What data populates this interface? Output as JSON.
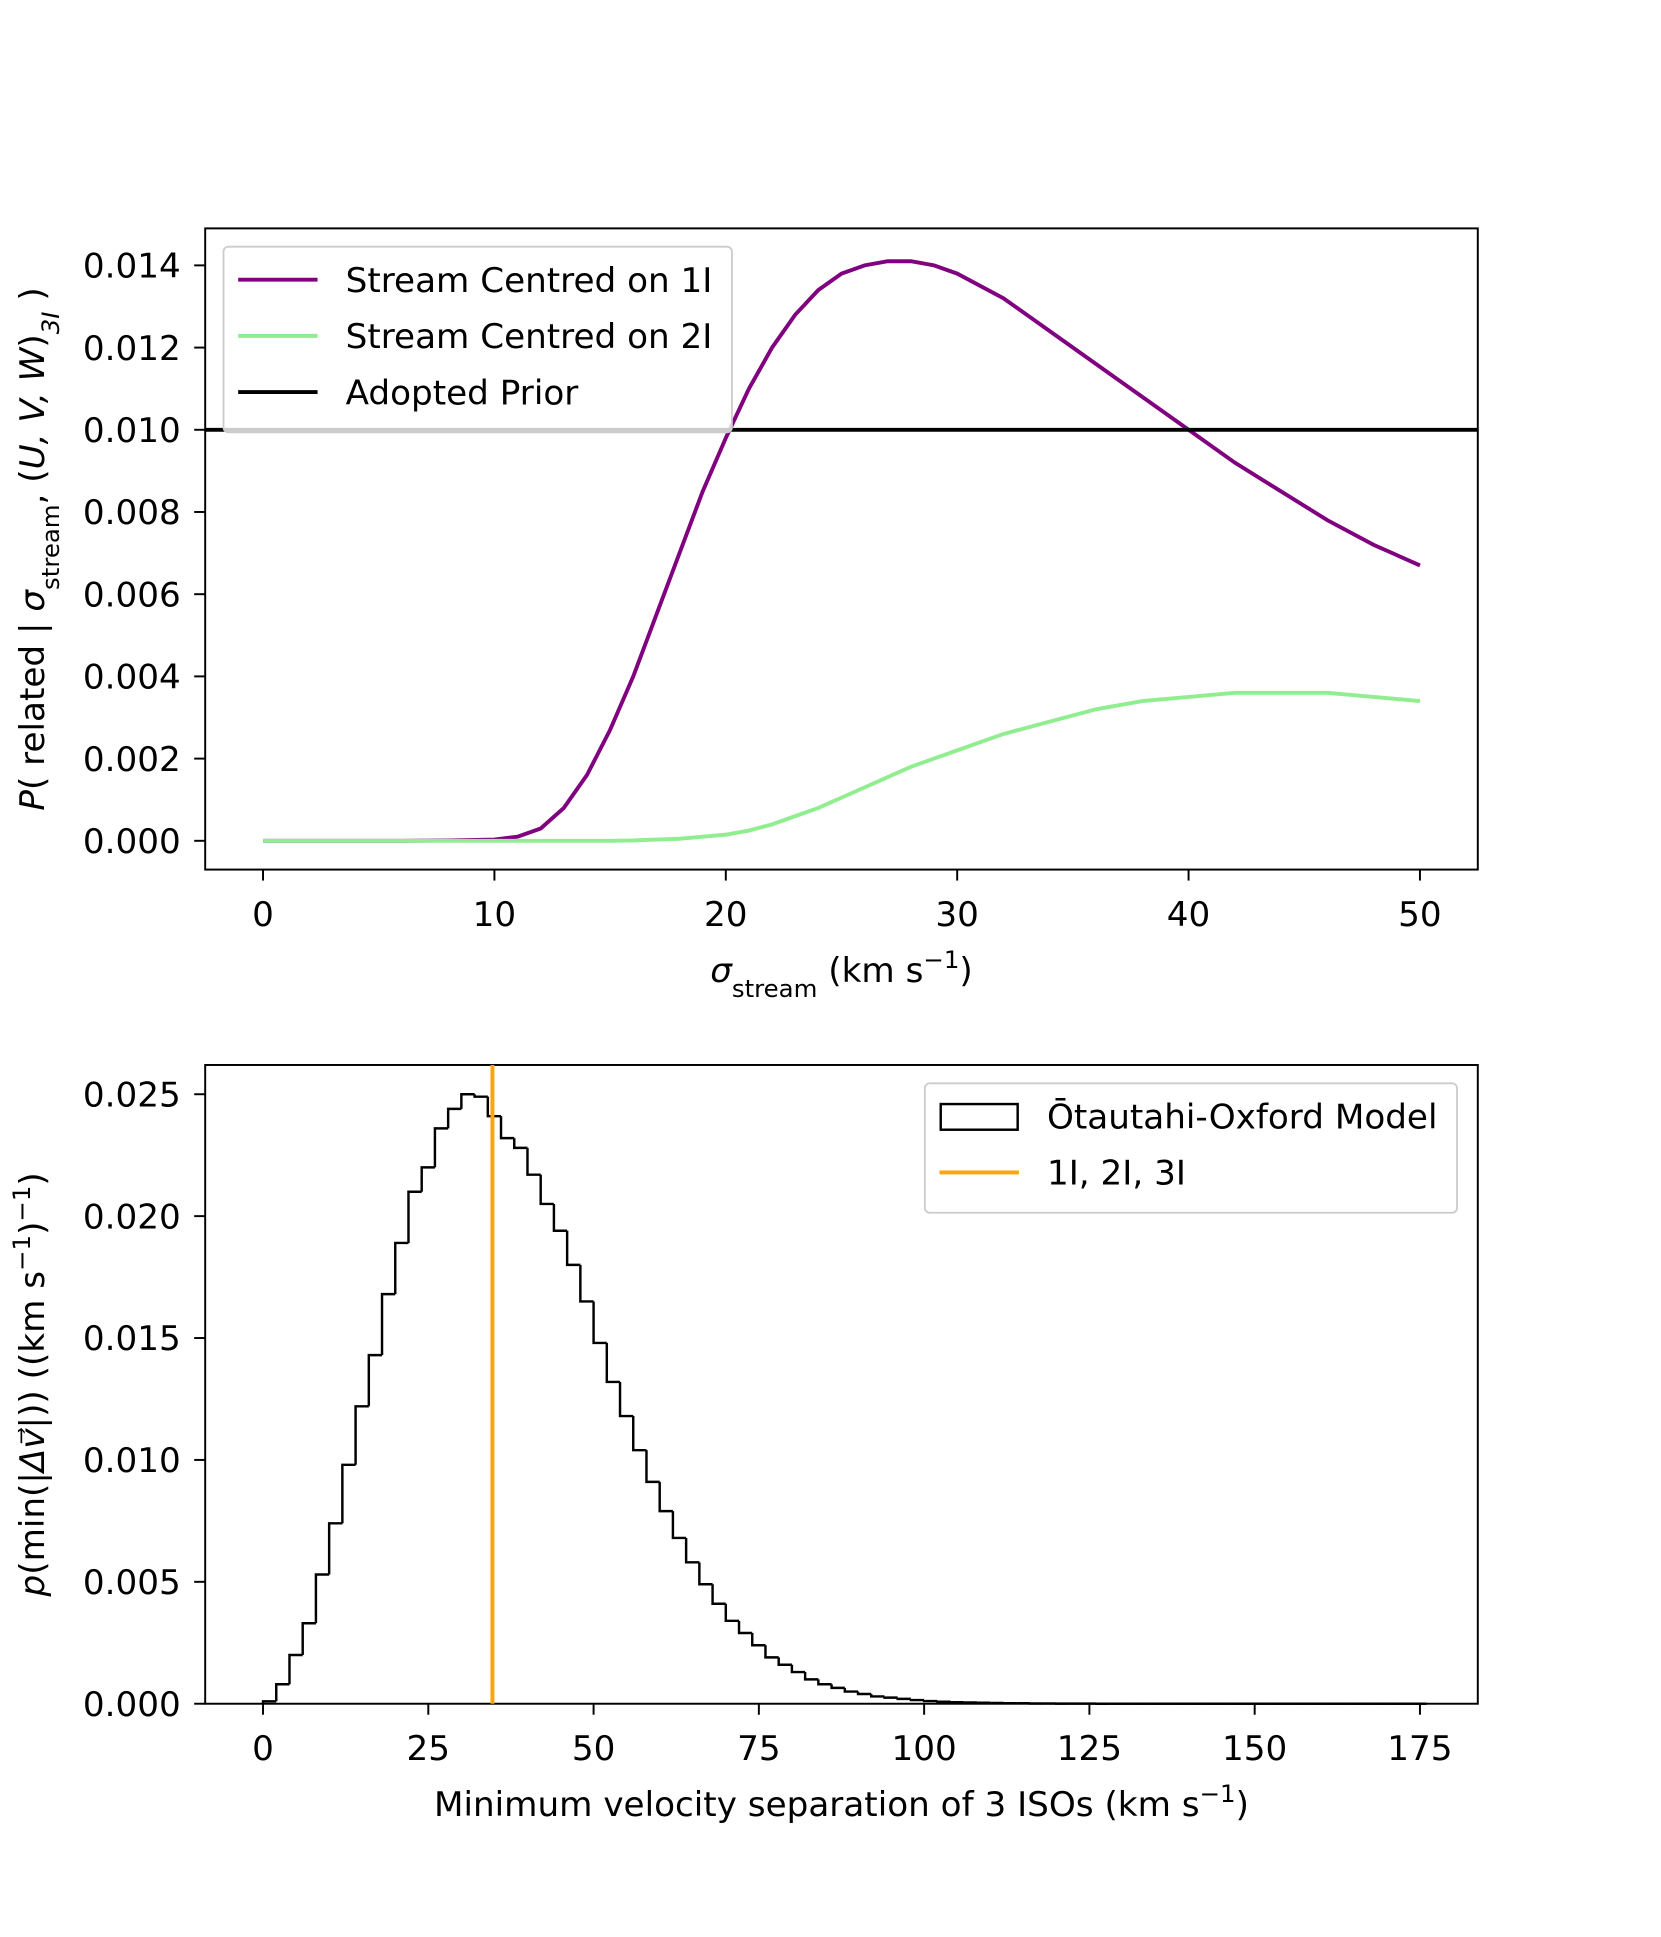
{
  "chart_data": [
    {
      "type": "line",
      "xlabel": [
        {
          "text": "σ",
          "style": "italic"
        },
        {
          "text": "stream",
          "style": "sub"
        },
        {
          "text": " (km s",
          "style": "normal"
        },
        {
          "text": "−1",
          "style": "sup"
        },
        {
          "text": ")",
          "style": "normal"
        }
      ],
      "ylabel": [
        {
          "text": "P",
          "style": "italic"
        },
        {
          "text": "( related | ",
          "style": "normal"
        },
        {
          "text": "σ",
          "style": "italic"
        },
        {
          "text": "stream",
          "style": "sub"
        },
        {
          "text": ", (",
          "style": "normal"
        },
        {
          "text": "U, V, W",
          "style": "italic"
        },
        {
          "text": ")",
          "style": "normal"
        },
        {
          "text": "3I",
          "style": "subitalic"
        },
        {
          "text": " )",
          "style": "normal"
        }
      ],
      "x": [
        0,
        2,
        4,
        6,
        8,
        10,
        11,
        12,
        13,
        14,
        15,
        16,
        17,
        18,
        19,
        20,
        21,
        22,
        23,
        24,
        25,
        26,
        27,
        28,
        29,
        30,
        32,
        34,
        36,
        38,
        40,
        42,
        44,
        46,
        48,
        50
      ],
      "series": [
        {
          "name": "Stream Centred on 1I",
          "color": "#800080",
          "values": [
            0,
            0,
            0,
            0,
            1e-05,
            3e-05,
            0.0001,
            0.0003,
            0.0008,
            0.0016,
            0.0027,
            0.004,
            0.0055,
            0.007,
            0.0085,
            0.0098,
            0.011,
            0.012,
            0.0128,
            0.0134,
            0.0138,
            0.014,
            0.0141,
            0.0141,
            0.014,
            0.0138,
            0.0132,
            0.0124,
            0.0116,
            0.0108,
            0.01,
            0.0092,
            0.0085,
            0.0078,
            0.0072,
            0.0067
          ]
        },
        {
          "name": "Stream Centred on 2I",
          "color": "#90ee90",
          "values": [
            0,
            0,
            0,
            0,
            0,
            0,
            0,
            0,
            0,
            0,
            0,
            1e-05,
            3e-05,
            5e-05,
            0.0001,
            0.00015,
            0.00025,
            0.0004,
            0.0006,
            0.0008,
            0.00105,
            0.0013,
            0.00155,
            0.0018,
            0.002,
            0.0022,
            0.0026,
            0.0029,
            0.0032,
            0.0034,
            0.0035,
            0.0036,
            0.0036,
            0.0036,
            0.0035,
            0.0034
          ]
        }
      ],
      "hlines": [
        {
          "name": "Adopted Prior",
          "color": "#000000",
          "value": 0.01
        }
      ],
      "xlim": [
        -2.5,
        52.5
      ],
      "xticks": [
        0,
        10,
        20,
        30,
        40,
        50
      ],
      "ylim": [
        -0.0007,
        0.0149
      ],
      "yticks": [
        {
          "value": 0,
          "label": "0.000"
        },
        0.002,
        0.004,
        0.006,
        0.008,
        {
          "value": 0.01,
          "label": "0.010"
        },
        0.012,
        0.014
      ],
      "grid": false,
      "legend": "upper left"
    },
    {
      "type": "histogram",
      "xlabel": [
        {
          "text": "Minimum velocity separation of 3 ISOs (km s",
          "style": "normal"
        },
        {
          "text": "−1",
          "style": "sup"
        },
        {
          "text": ")",
          "style": "normal"
        }
      ],
      "ylabel": [
        {
          "text": "p",
          "style": "italic"
        },
        {
          "text": "(min(|",
          "style": "normal"
        },
        {
          "text": "Δv⃗",
          "style": "italic"
        },
        {
          "text": "|)) ((km s",
          "style": "normal"
        },
        {
          "text": "−1",
          "style": "sup"
        },
        {
          "text": ")",
          "style": "normal"
        },
        {
          "text": "−1",
          "style": "sup"
        },
        {
          "text": ")",
          "style": "normal"
        }
      ],
      "bins": [
        0,
        2,
        4,
        6,
        8,
        10,
        12,
        14,
        16,
        18,
        20,
        22,
        24,
        26,
        28,
        30,
        32,
        34,
        36,
        38,
        40,
        42,
        44,
        46,
        48,
        50,
        52,
        54,
        56,
        58,
        60,
        62,
        64,
        66,
        68,
        70,
        72,
        74,
        76,
        78,
        80,
        82,
        84,
        86,
        88,
        90,
        92,
        94,
        96,
        98,
        100,
        102,
        104,
        106,
        108,
        110,
        112,
        114,
        116,
        118,
        120,
        122,
        124,
        126,
        128,
        130,
        132,
        134,
        136,
        138,
        140,
        142,
        144,
        146,
        148,
        150,
        152,
        154,
        156,
        158,
        160,
        162,
        164,
        166,
        168,
        170,
        172,
        174,
        176
      ],
      "series": [
        {
          "name": "Ōtautahi-Oxford Model",
          "color": "#000000",
          "values": [
            0.0001,
            0.0008,
            0.002,
            0.0033,
            0.0053,
            0.0074,
            0.0098,
            0.0122,
            0.0143,
            0.0168,
            0.0189,
            0.021,
            0.022,
            0.0236,
            0.0244,
            0.025,
            0.0249,
            0.0241,
            0.0232,
            0.0228,
            0.0217,
            0.0205,
            0.0194,
            0.018,
            0.0165,
            0.0148,
            0.0132,
            0.0118,
            0.0104,
            0.0091,
            0.0079,
            0.0068,
            0.0058,
            0.0049,
            0.0041,
            0.0034,
            0.0029,
            0.0024,
            0.0019,
            0.0016,
            0.0013,
            0.001,
            0.0008,
            0.00065,
            0.0005,
            0.0004,
            0.0003,
            0.00025,
            0.0002,
            0.00015,
            0.00011,
            8e-05,
            6e-05,
            5e-05,
            4e-05,
            3e-05,
            2e-05,
            2e-05,
            1e-05,
            1e-05,
            5e-06,
            5e-06,
            5e-06,
            0,
            0,
            0,
            0,
            0,
            0,
            0,
            0,
            0,
            0,
            0,
            0,
            0,
            0,
            0,
            0,
            0,
            0,
            0,
            0,
            0,
            0,
            0,
            0,
            0
          ]
        }
      ],
      "vlines": [
        {
          "name": "1I, 2I, 3I",
          "color": "#ffa500",
          "value": 34.7
        }
      ],
      "xlim": [
        -8.75,
        183.75
      ],
      "xticks": [
        0,
        25,
        50,
        75,
        100,
        125,
        150,
        175
      ],
      "ylim": [
        0,
        0.0262
      ],
      "yticks": [
        {
          "value": 0,
          "label": "0.000"
        },
        0.005,
        {
          "value": 0.01,
          "label": "0.010"
        },
        0.015,
        {
          "value": 0.02,
          "label": "0.020"
        },
        0.025
      ],
      "grid": false,
      "legend": "upper right"
    }
  ]
}
